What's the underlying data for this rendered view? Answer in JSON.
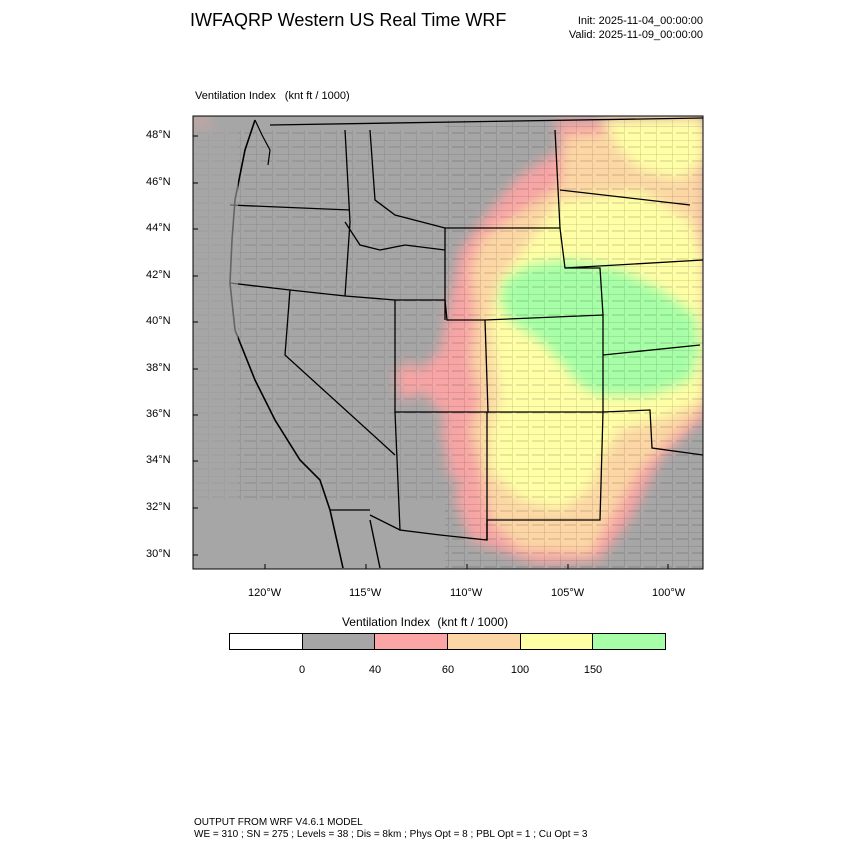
{
  "title": "IWFAQRP Western US Real Time WRF",
  "init_time": "Init: 2025-11-04_00:00:00",
  "valid_time": "Valid: 2025-11-09_00:00:00",
  "field": {
    "name": "Ventilation Index",
    "units": "(knt ft / 1000)"
  },
  "map": {
    "region": "Western United States",
    "lat_labels": [
      "48°N",
      "46°N",
      "44°N",
      "42°N",
      "40°N",
      "38°N",
      "36°N",
      "34°N",
      "32°N",
      "30°N"
    ],
    "lon_labels": [
      "120°W",
      "115°W",
      "110°W",
      "105°W",
      "100°W"
    ],
    "colors": {
      "land_background": "#a6a6a6",
      "boundaries": "#000000"
    }
  },
  "colorbar": {
    "title": "Ventilation Index",
    "units": "(knt ft / 1000)",
    "segments": [
      {
        "color": "#ffffff"
      },
      {
        "color": "#a6a6a6"
      },
      {
        "color": "#fca5a5"
      },
      {
        "color": "#fcd7a5"
      },
      {
        "color": "#ffffa6"
      },
      {
        "color": "#a6ffa6"
      }
    ],
    "tick_labels": [
      "0",
      "40",
      "60",
      "100",
      "150"
    ]
  },
  "footer": {
    "line1": "OUTPUT FROM WRF V4.6.1 MODEL",
    "line2": "WE = 310 ; SN = 275 ; Levels = 38 ; Dis = 8km ; Phys Opt = 8 ; PBL Opt = 1 ; Cu Opt = 3"
  }
}
